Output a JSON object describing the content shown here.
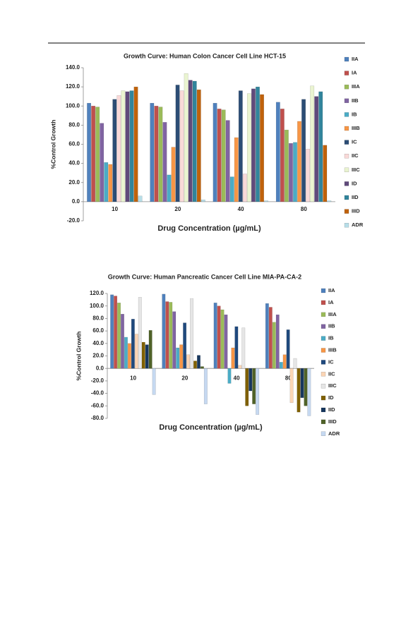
{
  "chart_data": [
    {
      "type": "bar",
      "title": "Growth Curve: Human Colon Cancer Cell Line HCT-15",
      "y_label": "%Control Growth",
      "x_label": "Drug Concentration (µg/mL)",
      "categories": [
        "10",
        "20",
        "40",
        "80"
      ],
      "ylim": [
        -20,
        140
      ],
      "yticks": [
        {
          "value": -20,
          "label": "-20.0"
        },
        {
          "value": 0,
          "label": "0.0"
        },
        {
          "value": 20,
          "label": "20.0"
        },
        {
          "value": 40,
          "label": "40.0"
        },
        {
          "value": 60,
          "label": "60.0"
        },
        {
          "value": 80,
          "label": "80.0"
        },
        {
          "value": 100,
          "label": "100.0"
        },
        {
          "value": 120,
          "label": "120.0"
        },
        {
          "value": 140,
          "label": "140.0"
        }
      ],
      "legend": "right",
      "series": [
        {
          "name": "IIA",
          "color": "#4f81bd",
          "values": [
            103,
            103,
            103,
            104
          ]
        },
        {
          "name": "IA",
          "color": "#c0504d",
          "values": [
            100,
            100,
            97,
            97
          ]
        },
        {
          "name": "IIIA",
          "color": "#9bbb59",
          "values": [
            99,
            99,
            96,
            75
          ]
        },
        {
          "name": "IIB",
          "color": "#8064a2",
          "values": [
            82,
            83,
            85,
            61
          ]
        },
        {
          "name": "IB",
          "color": "#4bacc6",
          "values": [
            41,
            28,
            26,
            62
          ]
        },
        {
          "name": "IIIB",
          "color": "#f79646",
          "values": [
            39,
            57,
            67,
            84
          ]
        },
        {
          "name": "IC",
          "color": "#2c4d75",
          "values": [
            107,
            122,
            116,
            107
          ]
        },
        {
          "name": "IIC",
          "color": "#f9d9d8",
          "values": [
            111,
            116,
            29,
            55
          ]
        },
        {
          "name": "IIIC",
          "color": "#eaf4d0",
          "values": [
            116,
            134,
            113,
            121
          ]
        },
        {
          "name": "ID",
          "color": "#604a7b",
          "values": [
            115,
            127,
            118,
            110
          ]
        },
        {
          "name": "IID",
          "color": "#31859c",
          "values": [
            116,
            126,
            120,
            115
          ]
        },
        {
          "name": "IIID",
          "color": "#c0620b",
          "values": [
            120,
            117,
            112,
            59
          ]
        },
        {
          "name": "ADR",
          "color": "#b7dee8",
          "values": [
            6,
            2,
            1,
            1
          ]
        }
      ]
    },
    {
      "type": "bar",
      "title": "Growth Curve: Human Pancreatic Cancer Cell Line MIA-PA-CA-2",
      "y_label": "%Control Growth",
      "x_label": "Drug Concentration (µg/mL)",
      "categories": [
        "10",
        "20",
        "40",
        "80"
      ],
      "ylim": [
        -80,
        120
      ],
      "yticks": [
        {
          "value": -80,
          "label": "-80.0"
        },
        {
          "value": -60,
          "label": "-60.0"
        },
        {
          "value": -40,
          "label": "-40.0"
        },
        {
          "value": -20,
          "label": "-20.0"
        },
        {
          "value": 0,
          "label": "0.0"
        },
        {
          "value": 20,
          "label": "20.0"
        },
        {
          "value": 40,
          "label": "40.0"
        },
        {
          "value": 60,
          "label": "60.0"
        },
        {
          "value": 80,
          "label": "80.0"
        },
        {
          "value": 100,
          "label": "100.0"
        },
        {
          "value": 120,
          "label": "120.0"
        }
      ],
      "legend": "right",
      "series": [
        {
          "name": "IIA",
          "color": "#4f81bd",
          "values": [
            118,
            119,
            105,
            104
          ]
        },
        {
          "name": "IA",
          "color": "#c0504d",
          "values": [
            116,
            107,
            100,
            98
          ]
        },
        {
          "name": "IIIA",
          "color": "#9bbb59",
          "values": [
            105,
            106,
            94,
            74
          ]
        },
        {
          "name": "IIB",
          "color": "#8064a2",
          "values": [
            87,
            91,
            86,
            86
          ]
        },
        {
          "name": "IB",
          "color": "#4bacc6",
          "values": [
            50,
            33,
            -24,
            10
          ]
        },
        {
          "name": "IIIB",
          "color": "#f79646",
          "values": [
            40,
            38,
            33,
            22
          ]
        },
        {
          "name": "IC",
          "color": "#1f497d",
          "values": [
            79,
            73,
            67,
            62
          ]
        },
        {
          "name": "IIC",
          "color": "#fbd5b5",
          "values": [
            55,
            22,
            5,
            -55
          ]
        },
        {
          "name": "IIIC",
          "color": "#e6e6e6",
          "values": [
            114,
            112,
            65,
            16
          ]
        },
        {
          "name": "ID",
          "color": "#7f6000",
          "values": [
            42,
            12,
            -60,
            -70
          ]
        },
        {
          "name": "IID",
          "color": "#17375e",
          "values": [
            38,
            21,
            -36,
            -47
          ]
        },
        {
          "name": "IIID",
          "color": "#4f6228",
          "values": [
            61,
            3,
            -57,
            -60
          ]
        },
        {
          "name": "ADR",
          "color": "#c6d9f1",
          "values": [
            -42,
            -57,
            -74,
            -76
          ]
        }
      ]
    }
  ]
}
